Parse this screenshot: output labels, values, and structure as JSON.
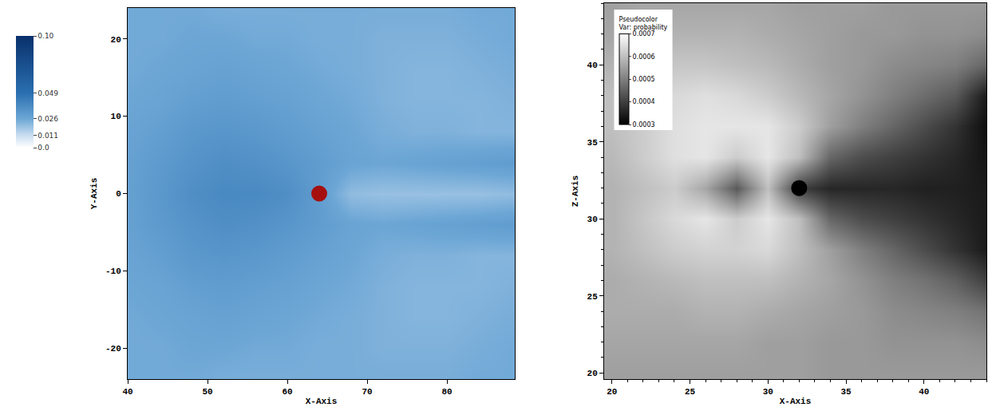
{
  "chart_data": [
    {
      "type": "heatmap",
      "x_label": "X-Axis",
      "y_label": "Y-Axis",
      "x": [
        40,
        44,
        48,
        52,
        56,
        60,
        64,
        68,
        72,
        76,
        80,
        84,
        88
      ],
      "y": [
        -24,
        -20,
        -16,
        -12,
        -8,
        -4,
        0,
        4,
        8,
        12,
        16,
        20,
        24
      ],
      "z": [
        [
          0.025,
          0.025,
          0.025,
          0.024,
          0.024,
          0.024,
          0.024,
          0.024,
          0.024,
          0.024,
          0.024,
          0.025,
          0.025
        ],
        [
          0.025,
          0.025,
          0.026,
          0.026,
          0.025,
          0.025,
          0.024,
          0.024,
          0.023,
          0.023,
          0.023,
          0.024,
          0.025
        ],
        [
          0.025,
          0.026,
          0.027,
          0.028,
          0.027,
          0.026,
          0.025,
          0.024,
          0.023,
          0.022,
          0.022,
          0.023,
          0.024
        ],
        [
          0.026,
          0.027,
          0.029,
          0.03,
          0.029,
          0.028,
          0.026,
          0.025,
          0.023,
          0.022,
          0.022,
          0.022,
          0.023
        ],
        [
          0.027,
          0.029,
          0.032,
          0.033,
          0.032,
          0.03,
          0.028,
          0.026,
          0.024,
          0.023,
          0.023,
          0.022,
          0.022
        ],
        [
          0.028,
          0.031,
          0.034,
          0.036,
          0.035,
          0.033,
          0.03,
          0.027,
          0.026,
          0.027,
          0.028,
          0.029,
          0.03
        ],
        [
          0.028,
          0.032,
          0.036,
          0.038,
          0.038,
          0.036,
          0.03,
          0.02,
          0.019,
          0.019,
          0.019,
          0.019,
          0.02
        ],
        [
          0.028,
          0.031,
          0.034,
          0.036,
          0.035,
          0.033,
          0.03,
          0.027,
          0.026,
          0.027,
          0.028,
          0.029,
          0.03
        ],
        [
          0.027,
          0.029,
          0.032,
          0.033,
          0.032,
          0.03,
          0.028,
          0.026,
          0.024,
          0.023,
          0.023,
          0.022,
          0.022
        ],
        [
          0.026,
          0.027,
          0.029,
          0.03,
          0.029,
          0.028,
          0.026,
          0.025,
          0.023,
          0.022,
          0.022,
          0.022,
          0.023
        ],
        [
          0.025,
          0.026,
          0.027,
          0.028,
          0.027,
          0.026,
          0.025,
          0.024,
          0.023,
          0.022,
          0.022,
          0.023,
          0.024
        ],
        [
          0.025,
          0.025,
          0.026,
          0.026,
          0.025,
          0.025,
          0.024,
          0.024,
          0.023,
          0.023,
          0.023,
          0.024,
          0.025
        ],
        [
          0.025,
          0.025,
          0.025,
          0.024,
          0.024,
          0.024,
          0.024,
          0.024,
          0.024,
          0.024,
          0.024,
          0.025,
          0.025
        ]
      ],
      "xlim": [
        40,
        88.5
      ],
      "ylim": [
        -24,
        24
      ],
      "xticks": [
        40,
        50,
        60,
        70,
        80
      ],
      "yticks": [
        -20,
        -10,
        0,
        10,
        20
      ],
      "colorbar_range": [
        0,
        0.1
      ],
      "colorbar_ticks": [
        {
          "value": 0,
          "label": "0.0"
        },
        0.011,
        0.026,
        0.049,
        {
          "value": 0.1,
          "label": "0.10"
        }
      ],
      "sphere": {
        "x": 64,
        "y": 0,
        "color": "#a50f0f",
        "marker": "circle"
      }
    },
    {
      "type": "heatmap",
      "x_label": "X-Axis",
      "y_label": "Z-Axis",
      "x": [
        20,
        22,
        24,
        26,
        28,
        30,
        32,
        34,
        36,
        38,
        40,
        42,
        44
      ],
      "y": [
        20,
        22,
        24,
        26,
        28,
        30,
        32,
        34,
        36,
        38,
        40,
        42,
        44
      ],
      "z": [
        [
          0.00055,
          0.00055,
          0.00055,
          0.00055,
          0.00055,
          0.00055,
          0.00055,
          0.00054,
          0.00054,
          0.00054,
          0.00054,
          0.00054,
          0.00054
        ],
        [
          0.00056,
          0.00056,
          0.00056,
          0.00056,
          0.00056,
          0.00055,
          0.00055,
          0.00054,
          0.00054,
          0.00053,
          0.00053,
          0.00053,
          0.00052
        ],
        [
          0.00057,
          0.00057,
          0.00057,
          0.00058,
          0.00058,
          0.00057,
          0.00056,
          0.00055,
          0.00054,
          0.00052,
          0.00051,
          0.0005,
          0.00048
        ],
        [
          0.00057,
          0.00058,
          0.00059,
          0.0006,
          0.0006,
          0.0006,
          0.00058,
          0.00056,
          0.00053,
          0.0005,
          0.00048,
          0.00045,
          0.0004
        ],
        [
          0.00058,
          0.0006,
          0.00062,
          0.00063,
          0.00063,
          0.00064,
          0.0006,
          0.00055,
          0.0005,
          0.00046,
          0.00042,
          0.00038,
          0.00034
        ],
        [
          0.00058,
          0.00061,
          0.00064,
          0.00066,
          0.00062,
          0.00066,
          0.0006,
          0.00046,
          0.00042,
          0.0004,
          0.00038,
          0.00036,
          0.00034
        ],
        [
          0.00058,
          0.0006,
          0.00062,
          0.00056,
          0.00044,
          0.0006,
          0.0004,
          0.00036,
          0.00036,
          0.00036,
          0.00035,
          0.00035,
          0.00034
        ],
        [
          0.00059,
          0.00062,
          0.00065,
          0.00066,
          0.00062,
          0.00066,
          0.0006,
          0.00046,
          0.00042,
          0.0004,
          0.00038,
          0.00036,
          0.00033
        ],
        [
          0.0006,
          0.00062,
          0.00065,
          0.00066,
          0.00066,
          0.00066,
          0.00062,
          0.00055,
          0.0005,
          0.00046,
          0.00042,
          0.00038,
          0.00032
        ],
        [
          0.0006,
          0.00062,
          0.00064,
          0.00065,
          0.00064,
          0.00062,
          0.00059,
          0.00056,
          0.00053,
          0.0005,
          0.00047,
          0.00044,
          0.00034
        ],
        [
          0.00058,
          0.0006,
          0.00061,
          0.00061,
          0.0006,
          0.00059,
          0.00057,
          0.00055,
          0.00054,
          0.00052,
          0.00051,
          0.0005,
          0.00046
        ],
        [
          0.00056,
          0.00057,
          0.00058,
          0.00058,
          0.00058,
          0.00057,
          0.00056,
          0.00055,
          0.00054,
          0.00054,
          0.00053,
          0.00053,
          0.00052
        ],
        [
          0.00055,
          0.00056,
          0.00056,
          0.00056,
          0.00056,
          0.00056,
          0.00055,
          0.00055,
          0.00055,
          0.00054,
          0.00054,
          0.00054,
          0.00054
        ]
      ],
      "xlim": [
        19.5,
        44
      ],
      "ylim": [
        19.6,
        44
      ],
      "xticks": [
        20,
        25,
        30,
        35,
        40
      ],
      "yticks": [
        20,
        25,
        30,
        35,
        40
      ],
      "colorbar_title": [
        "Pseudocolor",
        "Var: probability"
      ],
      "colorbar_range": [
        0.0003,
        0.0007
      ],
      "colorbar_ticks": [
        0.0003,
        0.0004,
        0.0005,
        0.0006,
        0.0007
      ],
      "sphere": {
        "x": 32,
        "y": 32,
        "color": "#000000",
        "marker": "circle"
      }
    }
  ]
}
